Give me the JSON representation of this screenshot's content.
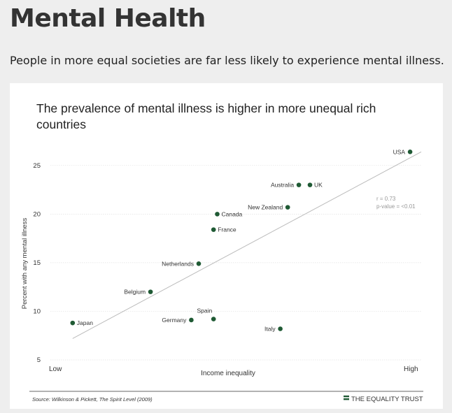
{
  "page": {
    "title": "Mental Health",
    "intro": "People in more equal societies are far less likely to experience mental illness."
  },
  "chart_data": {
    "type": "scatter",
    "title": "The prevalence of mental illness is higher in more unequal rich countries",
    "title_lines": [
      "The prevalence of mental illness is higher in more unequal rich",
      "countries"
    ],
    "xlabel": "Income inequality",
    "ylabel": "Percent with any mental illness",
    "x_low_label": "Low",
    "x_high_label": "High",
    "ylim": [
      5,
      27
    ],
    "y_ticks": [
      5,
      10,
      15,
      20,
      25
    ],
    "grid": true,
    "stats": [
      "r = 0.73",
      "p-value = <0.01"
    ],
    "source": "Source: Wilkinson & Pickett, The Spirit Level (2009)",
    "brand": "THE EQUALITY TRUST",
    "colors": {
      "point": "#1f5a34",
      "trend": "#bbbbbb",
      "grid": "#e2e2e2"
    },
    "points": [
      {
        "label": "Japan",
        "x": 0.06,
        "y": 8.8,
        "label_pos": "right"
      },
      {
        "label": "Belgium",
        "x": 0.27,
        "y": 12.0,
        "label_pos": "left"
      },
      {
        "label": "Netherlands",
        "x": 0.4,
        "y": 14.9,
        "label_pos": "left"
      },
      {
        "label": "Germany",
        "x": 0.38,
        "y": 9.1,
        "label_pos": "left"
      },
      {
        "label": "Spain",
        "x": 0.44,
        "y": 9.2,
        "label_pos": "above-left"
      },
      {
        "label": "Canada",
        "x": 0.45,
        "y": 20.0,
        "label_pos": "right"
      },
      {
        "label": "France",
        "x": 0.44,
        "y": 18.4,
        "label_pos": "right"
      },
      {
        "label": "Italy",
        "x": 0.62,
        "y": 8.2,
        "label_pos": "left"
      },
      {
        "label": "New Zealand",
        "x": 0.64,
        "y": 20.7,
        "label_pos": "left"
      },
      {
        "label": "Australia",
        "x": 0.67,
        "y": 23.0,
        "label_pos": "left"
      },
      {
        "label": "UK",
        "x": 0.7,
        "y": 23.0,
        "label_pos": "right"
      },
      {
        "label": "USA",
        "x": 0.97,
        "y": 26.4,
        "label_pos": "left"
      }
    ],
    "trendline": {
      "x": [
        0.06,
        1.0
      ],
      "y": [
        7.2,
        26.4
      ]
    }
  }
}
